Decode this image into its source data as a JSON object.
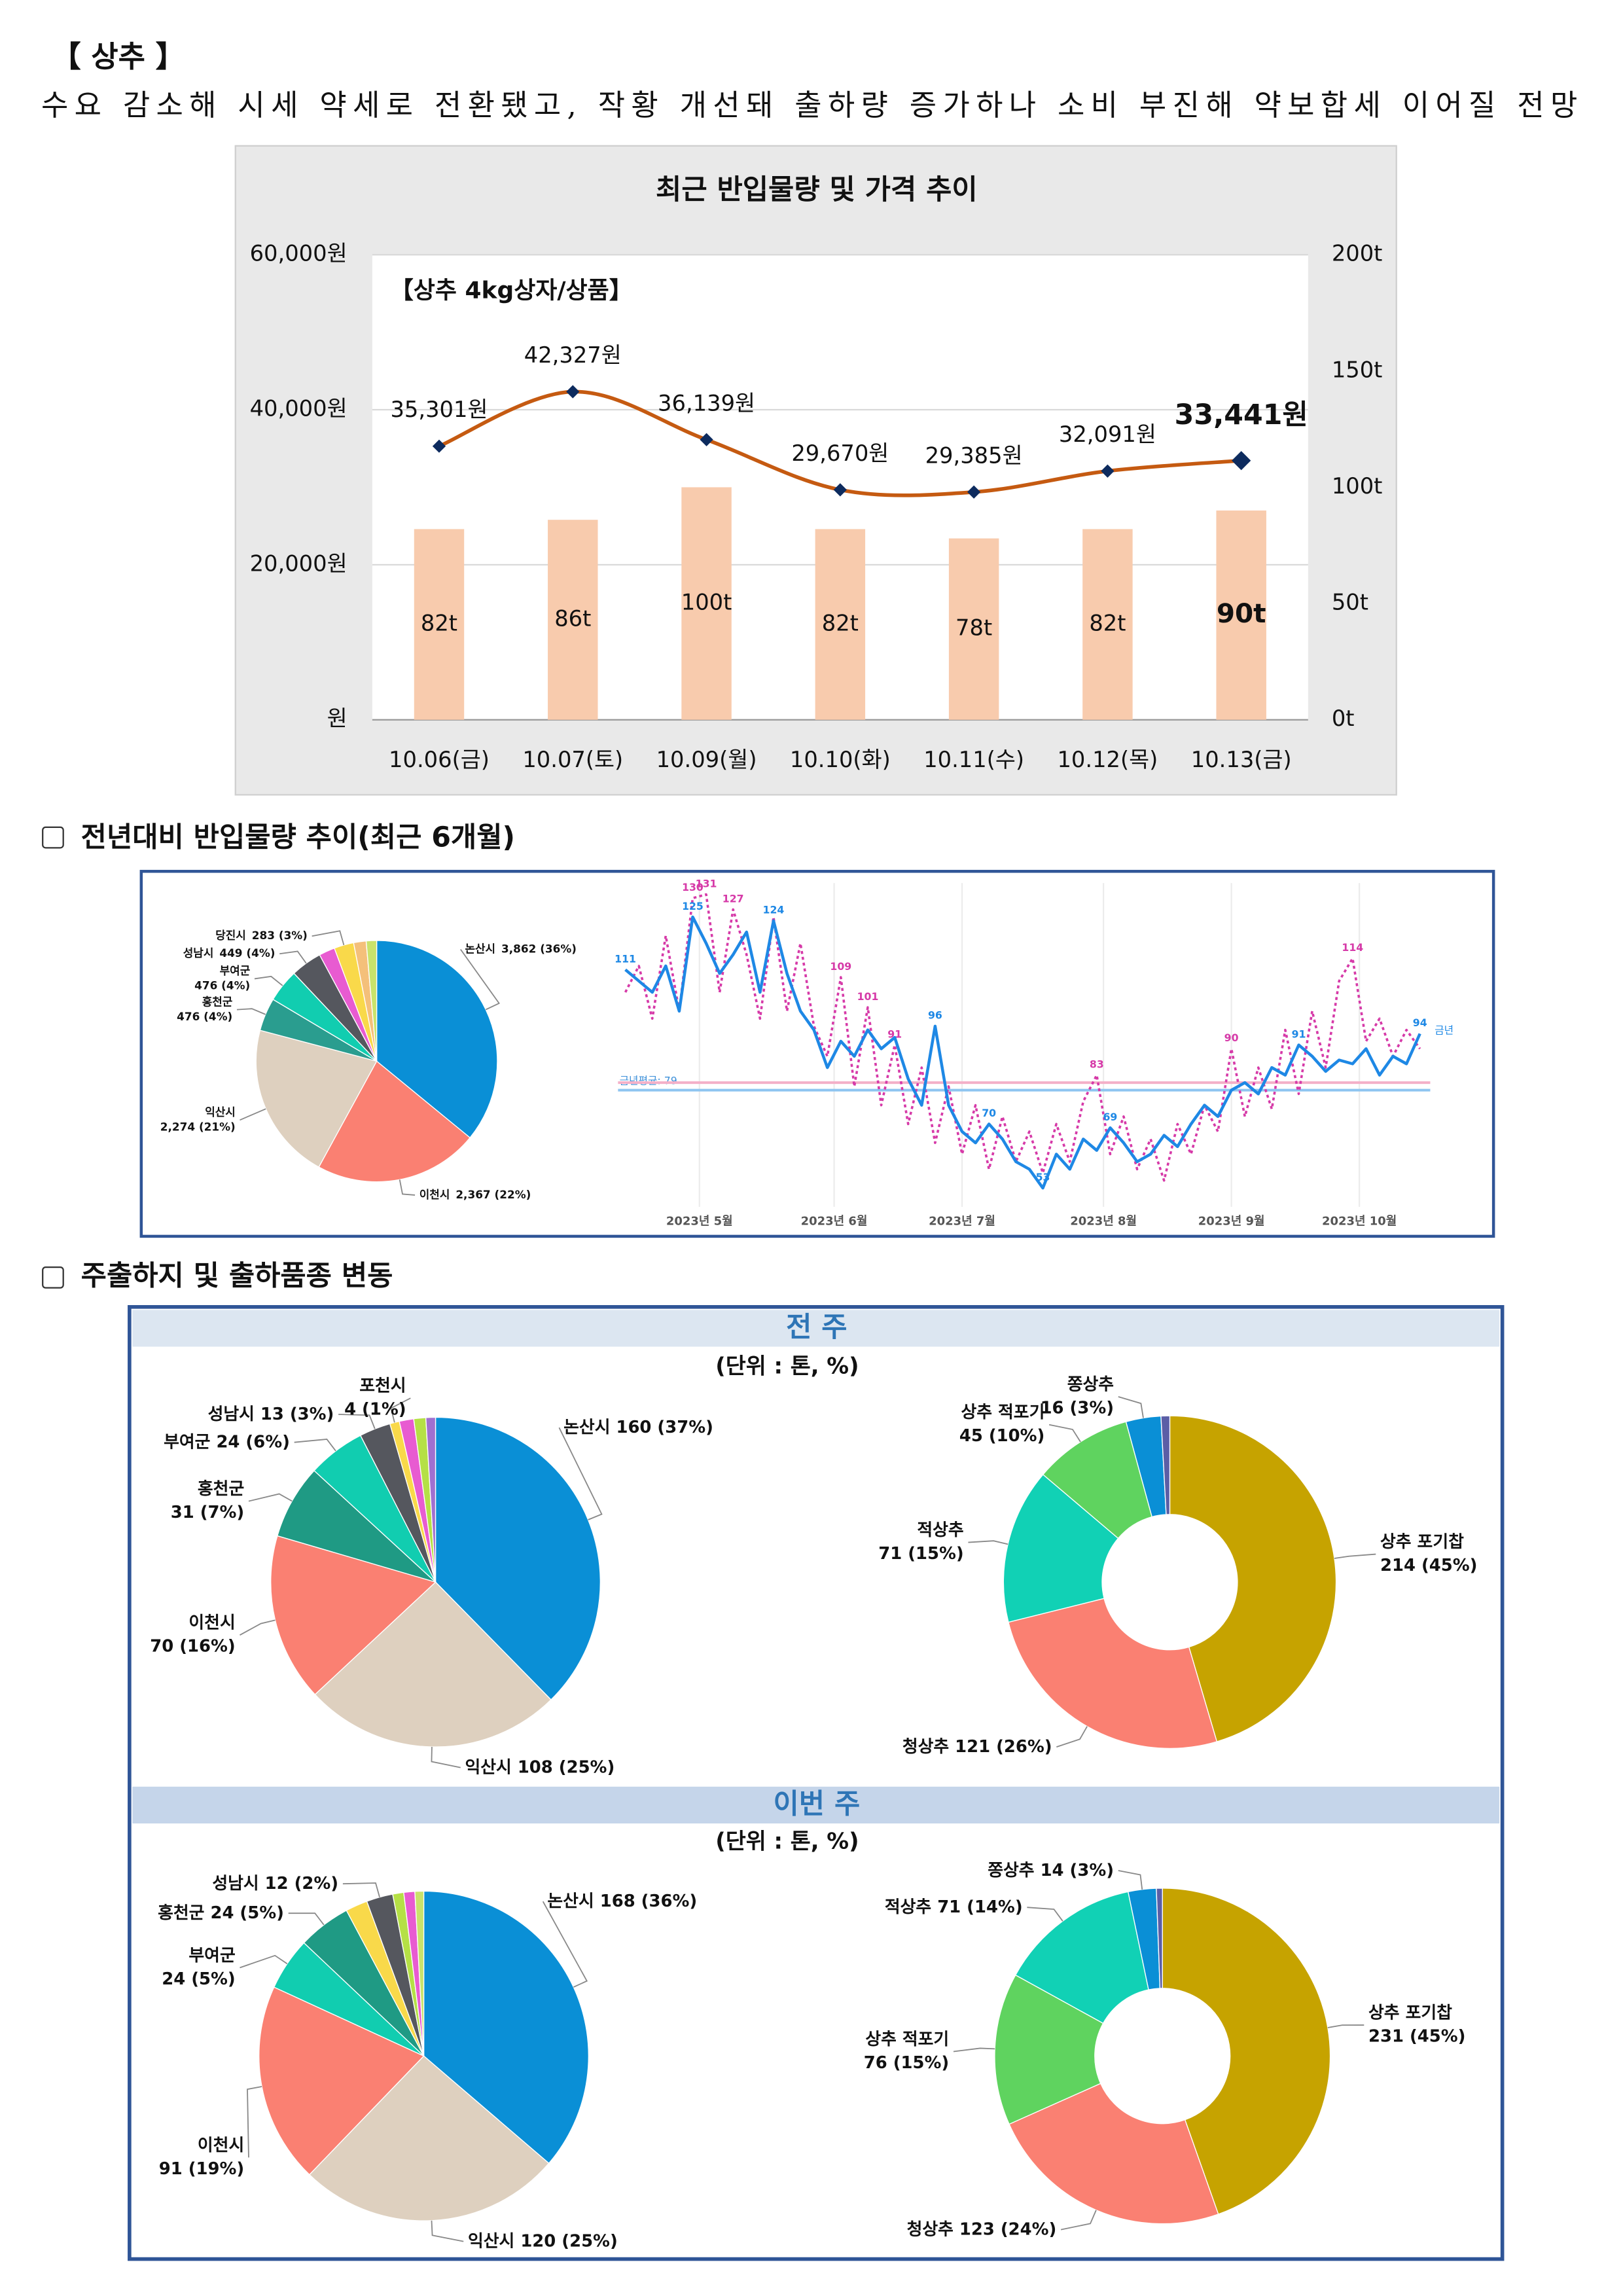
{
  "header": {
    "title": "【 상추 】",
    "summary": "수요 감소해 시세 약세로 전환됐고, 작황 개선돼 출하량 증가하나 소비 부진해 약보합세 이어질 전망"
  },
  "sections": [
    "전년대비 반입물량 추이(최근 6개월)",
    "주출하지 및 출하품종 변동"
  ],
  "panels": [
    {
      "title": "전 주",
      "unit": "(단위 : 톤, %)"
    },
    {
      "title": "이번 주",
      "unit": "(단위 : 톤, %)"
    }
  ],
  "chart_data": [
    {
      "type": "combo",
      "title": "최근 반입물량 및 가격 추이",
      "subtitle": "【상추 4kg상자/상품】",
      "categories": [
        "10.06(금)",
        "10.07(토)",
        "10.09(월)",
        "10.10(화)",
        "10.11(수)",
        "10.12(목)",
        "10.13(금)"
      ],
      "series": [
        {
          "type": "bar",
          "axis": "y2",
          "color": "#f8cbad",
          "values": [
            82,
            86,
            100,
            82,
            78,
            82,
            90
          ],
          "value_labels": [
            "82t",
            "86t",
            "100t",
            "82t",
            "78t",
            "82t",
            "90t"
          ]
        },
        {
          "type": "line",
          "axis": "y",
          "color": "#c55a11",
          "marker_color": "#0d2b5e",
          "values": [
            35301,
            42327,
            36139,
            29670,
            29385,
            32091,
            33441
          ],
          "value_labels": [
            "35,301원",
            "42,327원",
            "36,139원",
            "29,670원",
            "29,385원",
            "32,091원",
            "33,441원"
          ]
        }
      ],
      "ylim": [
        0,
        60000
      ],
      "yticks": [
        {
          "value": 0,
          "label": "원"
        },
        {
          "value": 20000,
          "label": "20,000원"
        },
        {
          "value": 40000,
          "label": "40,000원"
        },
        {
          "value": 60000,
          "label": "60,000원"
        }
      ],
      "y2lim": [
        0,
        200
      ],
      "y2ticks": [
        {
          "value": 0,
          "label": "0t"
        },
        {
          "value": 50,
          "label": "50t"
        },
        {
          "value": 100,
          "label": "100t"
        },
        {
          "value": 150,
          "label": "150t"
        },
        {
          "value": 200,
          "label": "200t"
        }
      ],
      "grid": true,
      "emphasize_last": true
    },
    {
      "type": "pie",
      "categories": [
        "논산시",
        "이천시",
        "익산시",
        "홍천군",
        "부여군",
        "성남시",
        null,
        "당진시",
        null,
        null
      ],
      "values": [
        3862,
        2367,
        2274,
        476,
        476,
        449,
        230,
        283,
        180,
        150
      ],
      "value_labels": [
        "3,862 (36%)",
        "2,367 (22%)",
        "2,274 (21%)",
        "476 (4%)",
        "476 (4%)",
        "449 (4%)",
        null,
        "283 (3%)",
        null,
        null
      ],
      "colors": [
        "#0a8fd6",
        "#fa8072",
        "#ded0bf",
        "#2a9d8f",
        "#11cdb0",
        "#55575e",
        "#e85bd1",
        "#f9d94a",
        "#f4c07a",
        "#c9e36b"
      ]
    },
    {
      "type": "line",
      "xlim": [
        0,
        59
      ],
      "ylim": [
        48,
        134
      ],
      "xticks": [
        {
          "value": 5.5,
          "label": "2023년 5월"
        },
        {
          "value": 15.5,
          "label": "2023년 6월"
        },
        {
          "value": 25,
          "label": "2023년 7월"
        },
        {
          "value": 35.5,
          "label": "2023년 8월"
        },
        {
          "value": 45,
          "label": "2023년 9월"
        },
        {
          "value": 54.5,
          "label": "2023년 10월"
        }
      ],
      "series": [
        {
          "name": "금년",
          "color": "#1e88e5",
          "dashed": false,
          "values": [
            111,
            108,
            105,
            112,
            100,
            125,
            118,
            110,
            115,
            121,
            105,
            124,
            110,
            100,
            95,
            85,
            92,
            88,
            95,
            90,
            93,
            82,
            75,
            96,
            75,
            68,
            65,
            70,
            66,
            60,
            58,
            53,
            62,
            58,
            66,
            63,
            69,
            65,
            60,
            62,
            67,
            64,
            70,
            75,
            72,
            79,
            81,
            78,
            85,
            83,
            91,
            88,
            84,
            87,
            86,
            90,
            83,
            88,
            86,
            94
          ],
          "value_labels": [
            "111",
            null,
            null,
            null,
            null,
            "125",
            null,
            null,
            null,
            null,
            null,
            "124",
            null,
            null,
            null,
            null,
            null,
            null,
            null,
            null,
            null,
            null,
            null,
            "96",
            null,
            null,
            null,
            "70",
            null,
            null,
            null,
            "53",
            null,
            null,
            null,
            null,
            "69",
            null,
            null,
            null,
            null,
            null,
            null,
            null,
            null,
            null,
            null,
            null,
            null,
            null,
            "91",
            null,
            null,
            null,
            null,
            null,
            null,
            null,
            null,
            "94"
          ]
        },
        {
          "name": null,
          "color": "#d63aa8",
          "dashed": true,
          "values": [
            105,
            112,
            98,
            120,
            100,
            130,
            131,
            105,
            127,
            115,
            98,
            125,
            100,
            118,
            96,
            88,
            109,
            80,
            101,
            75,
            91,
            70,
            85,
            65,
            80,
            62,
            75,
            58,
            72,
            60,
            68,
            57,
            70,
            60,
            76,
            83,
            62,
            72,
            58,
            66,
            55,
            70,
            62,
            75,
            68,
            90,
            72,
            85,
            74,
            95,
            78,
            100,
            85,
            108,
            114,
            92,
            98,
            88,
            95,
            90
          ],
          "value_labels": [
            null,
            null,
            null,
            null,
            null,
            "130",
            "131",
            null,
            "127",
            null,
            null,
            null,
            null,
            null,
            null,
            null,
            "109",
            null,
            "101",
            null,
            "91",
            null,
            null,
            null,
            null,
            null,
            null,
            null,
            null,
            null,
            null,
            null,
            null,
            null,
            null,
            "83",
            null,
            null,
            null,
            null,
            null,
            null,
            null,
            null,
            null,
            "90",
            null,
            null,
            null,
            null,
            null,
            null,
            null,
            null,
            "114",
            null,
            null,
            null,
            null,
            null
          ]
        }
      ],
      "reference_lines": [
        {
          "label": "금년평균: 79",
          "value": 79,
          "color": "#8ec5f0"
        },
        {
          "value": 81,
          "color": "#f4b0c8"
        }
      ]
    },
    {
      "type": "pie",
      "categories": [
        "논산시",
        "익산시",
        "이천시",
        "홍천군",
        "부여군",
        "성남시",
        "포천시",
        null,
        null,
        null
      ],
      "values": [
        160,
        108,
        70,
        31,
        24,
        13,
        4,
        6,
        5,
        4
      ],
      "value_labels": [
        "160 (37%)",
        "108 (25%)",
        "70 (16%)",
        "31 (7%)",
        "24 (6%)",
        "13 (3%)",
        "4 (1%)",
        null,
        null,
        null
      ],
      "colors": [
        "#0a8fd6",
        "#ded0bf",
        "#fa8072",
        "#1f9a84",
        "#11cdb0",
        "#55575e",
        "#f9d94a",
        "#e85bd1",
        "#b5e046",
        "#a070d0"
      ]
    },
    {
      "type": "donut",
      "categories": [
        "상추 포기찹",
        "청상추",
        "적상추",
        "상추 적포기",
        "쫑상추",
        null
      ],
      "values": [
        214,
        121,
        71,
        45,
        16,
        4
      ],
      "value_labels": [
        "214 (45%)",
        "121 (26%)",
        "71 (15%)",
        "45 (10%)",
        "16 (3%)",
        null
      ],
      "colors": [
        "#c6a300",
        "#fa8072",
        "#11d1b5",
        "#5fd35f",
        "#0a8fd6",
        "#5b5ea6"
      ]
    },
    {
      "type": "pie",
      "categories": [
        "논산시",
        "익산시",
        "이천시",
        "부여군",
        "홍천군",
        null,
        "성남시",
        null,
        null,
        null
      ],
      "values": [
        168,
        120,
        91,
        24,
        24,
        10,
        12,
        5,
        5,
        4
      ],
      "value_labels": [
        "168 (36%)",
        "120 (25%)",
        "91 (19%)",
        "24 (5%)",
        "24 (5%)",
        null,
        "12 (2%)",
        null,
        null,
        null
      ],
      "colors": [
        "#0a8fd6",
        "#ded0bf",
        "#fa8072",
        "#11cdb0",
        "#1f9a84",
        "#f9d94a",
        "#55575e",
        "#b5e046",
        "#e85bd1",
        "#c9e36b"
      ]
    },
    {
      "type": "donut",
      "categories": [
        "상추 포기찹",
        "청상추",
        "상추 적포기",
        "적상추",
        "쫑상추",
        null
      ],
      "values": [
        231,
        123,
        76,
        71,
        14,
        3
      ],
      "value_labels": [
        "231 (45%)",
        "123 (24%)",
        "76 (15%)",
        "71 (14%)",
        "14 (3%)",
        null
      ],
      "colors": [
        "#c6a300",
        "#fa8072",
        "#5fd35f",
        "#11d1b5",
        "#0a8fd6",
        "#5b5ea6"
      ]
    }
  ]
}
